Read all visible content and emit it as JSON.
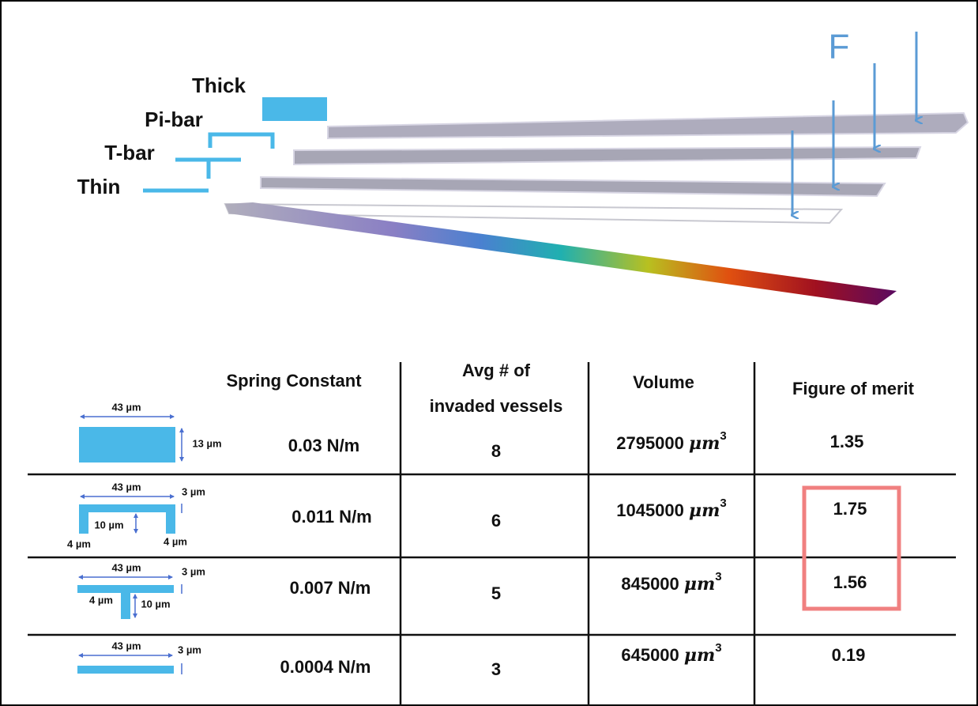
{
  "figure": {
    "force_label": "F",
    "legend": [
      "Thick",
      "Pi-bar",
      "T-bar",
      "Thin"
    ]
  },
  "table": {
    "headers": {
      "spring_constant": "Spring Constant",
      "avg_vessels": [
        "Avg # of",
        "invaded vessels"
      ],
      "volume": "Volume",
      "figure_of_merit": "Figure of merit"
    },
    "rows": [
      {
        "dims": [
          "43 µm",
          "13 µm"
        ],
        "spring_constant": "0.03 N/m",
        "avg_vessels": 8,
        "volume": 2795000,
        "volume_unit": "μm",
        "volume_exponent": "3",
        "figure_of_merit": 1.35
      },
      {
        "dims": [
          "43 µm",
          "3 µm",
          "10 µm",
          "4 µm",
          "4 µm"
        ],
        "spring_constant": "0.011 N/m",
        "avg_vessels": 6,
        "volume": 1045000,
        "volume_unit": "μm",
        "volume_exponent": "3",
        "figure_of_merit": 1.75
      },
      {
        "dims": [
          "43 µm",
          "3 µm",
          "4 µm",
          "10 µm"
        ],
        "spring_constant": "0.007 N/m",
        "avg_vessels": 5,
        "volume": 845000,
        "volume_unit": "μm",
        "volume_exponent": "3",
        "figure_of_merit": 1.56
      },
      {
        "dims": [
          "43 µm",
          "3 µm"
        ],
        "spring_constant": "0.0004 N/m",
        "avg_vessels": 3,
        "volume": 645000,
        "volume_unit": "μm",
        "volume_exponent": "3",
        "figure_of_merit": 0.19
      }
    ]
  }
}
